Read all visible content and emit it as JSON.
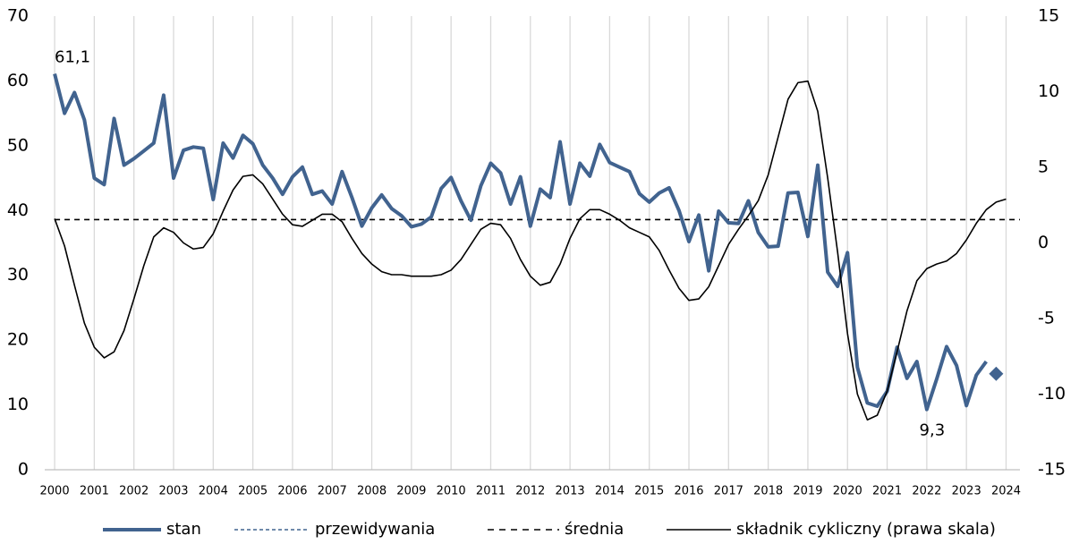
{
  "chart_data": {
    "type": "line",
    "x": [
      2000,
      2000.25,
      2000.5,
      2000.75,
      2001,
      2001.25,
      2001.5,
      2001.75,
      2002,
      2002.25,
      2002.5,
      2002.75,
      2003,
      2003.25,
      2003.5,
      2003.75,
      2004,
      2004.25,
      2004.5,
      2004.75,
      2005,
      2005.25,
      2005.5,
      2005.75,
      2006,
      2006.25,
      2006.5,
      2006.75,
      2007,
      2007.25,
      2007.5,
      2007.75,
      2008,
      2008.25,
      2008.5,
      2008.75,
      2009,
      2009.25,
      2009.5,
      2009.75,
      2010,
      2010.25,
      2010.5,
      2010.75,
      2011,
      2011.25,
      2011.5,
      2011.75,
      2012,
      2012.25,
      2012.5,
      2012.75,
      2013,
      2013.25,
      2013.5,
      2013.75,
      2014,
      2014.25,
      2014.5,
      2014.75,
      2015,
      2015.25,
      2015.5,
      2015.75,
      2016,
      2016.25,
      2016.5,
      2016.75,
      2017,
      2017.25,
      2017.5,
      2017.75,
      2018,
      2018.25,
      2018.5,
      2018.75,
      2019,
      2019.25,
      2019.5,
      2019.75,
      2020,
      2020.25,
      2020.5,
      2020.75,
      2021,
      2021.25,
      2021.5,
      2021.75,
      2022,
      2022.25,
      2022.5,
      2022.75,
      2023,
      2023.25,
      2023.5,
      2023.75,
      2024
    ],
    "series": [
      {
        "name": "stan",
        "color": "#41638f",
        "values": [
          61.1,
          55,
          58.2,
          54,
          45,
          44,
          54.2,
          47,
          48,
          49.2,
          50.4,
          57.8,
          45,
          49.3,
          49.8,
          49.6,
          41.7,
          50.4,
          48.1,
          51.6,
          50.3,
          47,
          45,
          42.5,
          45.2,
          46.7,
          42.5,
          43,
          41,
          46,
          42,
          37.6,
          40.4,
          42.4,
          40.3,
          39.2,
          37.5,
          37.9,
          39,
          43.4,
          45.1,
          41.5,
          38.5,
          43.8,
          47.3,
          45.8,
          41,
          45.2,
          37.6,
          43.3,
          42,
          50.6,
          41,
          47.3,
          45.3,
          50.2,
          47.4,
          46.7,
          46,
          42.6,
          41.3,
          42.7,
          43.5,
          40,
          35.2,
          39.3,
          30.7,
          39.9,
          38.1,
          38,
          41.5,
          36.6,
          34.4,
          34.5,
          42.7,
          42.8,
          36,
          47,
          30.5,
          28.3,
          33.5,
          15.8,
          10.3,
          9.8,
          12.1,
          18.9,
          14.1,
          16.7,
          9.3,
          14,
          19,
          16.1,
          9.9,
          14.6,
          16.7,
          null,
          null
        ],
        "value_labels": [
          "61,1",
          null,
          null,
          null,
          null,
          null,
          null,
          null,
          null,
          null,
          null,
          null,
          null,
          null,
          null,
          null,
          null,
          null,
          null,
          null,
          null,
          null,
          null,
          null,
          null,
          null,
          null,
          null,
          null,
          null,
          null,
          null,
          null,
          null,
          null,
          null,
          null,
          null,
          null,
          null,
          null,
          null,
          null,
          null,
          null,
          null,
          null,
          null,
          null,
          null,
          null,
          null,
          null,
          null,
          null,
          null,
          null,
          null,
          null,
          null,
          null,
          null,
          null,
          null,
          null,
          null,
          null,
          null,
          null,
          null,
          null,
          null,
          null,
          null,
          null,
          null,
          null,
          null,
          null,
          null,
          null,
          null,
          null,
          null,
          null,
          null,
          null,
          null,
          "9,3",
          null,
          null,
          null,
          null,
          null,
          null,
          null,
          null
        ]
      },
      {
        "name": "przewidywania",
        "color": "#41638f",
        "line_style": "dashed",
        "marker": "diamond",
        "values": [
          null,
          null,
          null,
          null,
          null,
          null,
          null,
          null,
          null,
          null,
          null,
          null,
          null,
          null,
          null,
          null,
          null,
          null,
          null,
          null,
          null,
          null,
          null,
          null,
          null,
          null,
          null,
          null,
          null,
          null,
          null,
          null,
          null,
          null,
          null,
          null,
          null,
          null,
          null,
          null,
          null,
          null,
          null,
          null,
          null,
          null,
          null,
          null,
          null,
          null,
          null,
          null,
          null,
          null,
          null,
          null,
          null,
          null,
          null,
          null,
          null,
          null,
          null,
          null,
          null,
          null,
          null,
          null,
          null,
          null,
          null,
          null,
          null,
          null,
          null,
          null,
          null,
          null,
          null,
          null,
          null,
          null,
          null,
          null,
          null,
          null,
          null,
          null,
          null,
          null,
          null,
          null,
          null,
          null,
          null,
          14.8,
          null
        ]
      },
      {
        "name": "składnik cykliczny (prawa skala)",
        "color": "#000000",
        "axis": "y2",
        "values": [
          1.6,
          -0.2,
          -2.8,
          -5.3,
          -6.9,
          -7.6,
          -7.2,
          -5.8,
          -3.7,
          -1.5,
          0.4,
          1.0,
          0.7,
          0,
          -0.4,
          -0.3,
          0.6,
          2.1,
          3.5,
          4.4,
          4.5,
          3.9,
          2.9,
          1.9,
          1.2,
          1.1,
          1.5,
          1.9,
          1.9,
          1.4,
          0.3,
          -0.7,
          -1.4,
          -1.9,
          -2.1,
          -2.1,
          -2.2,
          -2.2,
          -2.2,
          -2.1,
          -1.8,
          -1.1,
          -0.1,
          0.9,
          1.3,
          1.2,
          0.3,
          -1.1,
          -2.2,
          -2.8,
          -2.6,
          -1.4,
          0.3,
          1.6,
          2.2,
          2.2,
          1.9,
          1.5,
          1.0,
          0.7,
          0.4,
          -0.5,
          -1.8,
          -3.0,
          -3.8,
          -3.7,
          -2.9,
          -1.5,
          -0.1,
          0.9,
          1.8,
          2.8,
          4.5,
          7.0,
          9.5,
          10.6,
          10.7,
          8.7,
          4.3,
          -0.6,
          -6,
          -10,
          -11.7,
          -11.4,
          -9.8,
          -7.2,
          -4.5,
          -2.5,
          -1.7,
          -1.4,
          -1.2,
          -0.7,
          0.2,
          1.3,
          2.2,
          2.7,
          2.9
        ]
      }
    ],
    "hline": {
      "name": "średnia",
      "value": 38.6,
      "color": "#000000"
    },
    "xlim": [
      1999.75,
      2024.35
    ],
    "xticks": [
      2000,
      2001,
      2002,
      2003,
      2004,
      2005,
      2006,
      2007,
      2008,
      2009,
      2010,
      2011,
      2012,
      2013,
      2014,
      2015,
      2016,
      2017,
      2018,
      2019,
      2020,
      2021,
      2022,
      2023,
      2024
    ],
    "ylim": [
      0,
      70
    ],
    "yticks": [
      0,
      10,
      20,
      30,
      40,
      50,
      60,
      70
    ],
    "y2lim": [
      -15,
      15
    ],
    "y2ticks": [
      -15,
      -10,
      -5,
      0,
      5,
      10,
      15
    ],
    "grid": "x",
    "legend": "bottom"
  }
}
